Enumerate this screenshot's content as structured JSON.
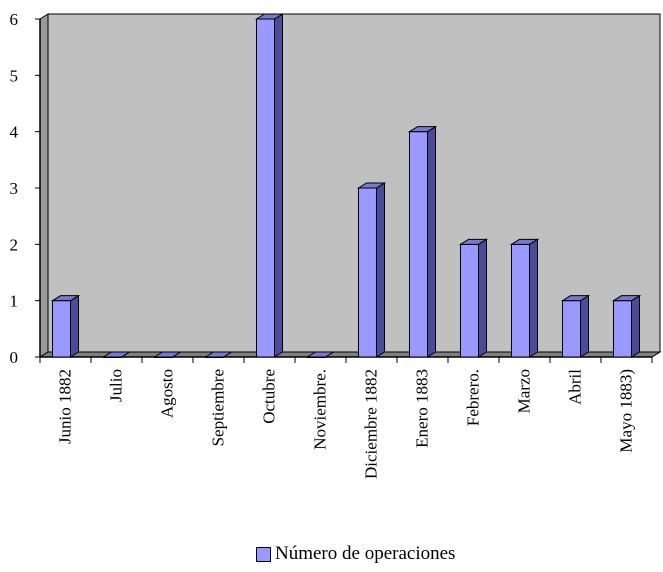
{
  "chart_data": {
    "type": "bar",
    "categories": [
      "Junio 1882",
      "Julio",
      "Agosto",
      "Septiembre",
      "Octubre",
      "Noviembre.",
      "Diciembre 1882",
      "Enero 1883",
      "Febrero.",
      "Marzo",
      "Abril",
      "Mayo 1883)"
    ],
    "series": [
      {
        "name": "Número de operaciones",
        "values": [
          1,
          0,
          0,
          0,
          6,
          0,
          3,
          4,
          2,
          2,
          1,
          1
        ]
      }
    ],
    "yticks": [
      "0",
      "1",
      "2",
      "3",
      "4",
      "5",
      "6"
    ],
    "ylim": [
      0,
      6
    ],
    "grid": false,
    "legend_position": "bottom",
    "colors": {
      "bar_front": "#9999ff",
      "bar_side": "#4b4b99",
      "bar_top": "#7878cc",
      "plot_background": "#c0c0c0",
      "plot_wall_side": "#9a9a9a",
      "floor": "#808080"
    }
  }
}
